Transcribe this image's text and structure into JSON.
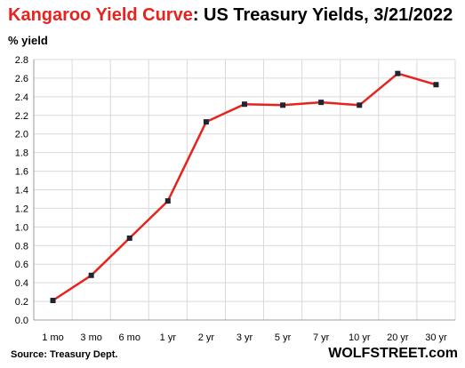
{
  "title": {
    "accent": "Kangaroo  Yield Curve",
    "rest": ": US Treasury Yields, 3/21/2022"
  },
  "footer": {
    "source": "Source: Treasury Dept.",
    "brand": "WOLFSTREET.com"
  },
  "colors": {
    "accent": "#e8231e",
    "line": "#e8231e",
    "marker": "#1f2430",
    "grid": "#d9d9d9"
  },
  "chart_data": {
    "type": "line",
    "title": "Kangaroo  Yield Curve: US Treasury Yields, 3/21/2022",
    "xlabel": "",
    "ylabel": "% yield",
    "categories": [
      "1 mo",
      "3 mo",
      "6 mo",
      "1 yr",
      "2 yr",
      "3 yr",
      "5 yr",
      "7 yr",
      "10 yr",
      "20 yr",
      "30 yr"
    ],
    "series": [
      {
        "values": [
          0.21,
          0.48,
          0.88,
          1.28,
          2.13,
          2.32,
          2.31,
          2.34,
          2.31,
          2.65,
          2.53
        ]
      }
    ],
    "ylim": [
      0,
      2.8
    ],
    "yticks": [
      "0.0",
      "0.2",
      "0.4",
      "0.6",
      "0.8",
      "1.0",
      "1.2",
      "1.4",
      "1.6",
      "1.8",
      "2.0",
      "2.2",
      "2.4",
      "2.6",
      "2.8"
    ],
    "grid": true,
    "legend": "none"
  }
}
